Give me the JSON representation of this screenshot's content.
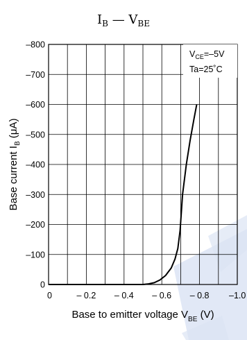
{
  "chart_data": {
    "type": "line",
    "title": {
      "base1": "I",
      "sub1": "B",
      "dash": "—",
      "base2": "V",
      "sub2": "BE"
    },
    "conditions": {
      "vce": {
        "base": "V",
        "sub": "CE",
        "value": "=–5V"
      },
      "ta": "Ta=25˚C"
    },
    "ylabel": {
      "text": "Base current",
      "symbol": "I",
      "sub": "B",
      "unit": "(μA)"
    },
    "xlabel": {
      "text": "Base to emitter voltage",
      "symbol": "V",
      "sub": "BE",
      "unit": "(V)"
    },
    "x_ticks": [
      "0",
      "– 0.2",
      "– 0.4",
      "– 0.6",
      "– 0.8",
      "–1.0"
    ],
    "y_ticks": [
      "0",
      "–100",
      "–200",
      "–300",
      "–400",
      "–500",
      "–600",
      "–700",
      "–800"
    ],
    "xlim": [
      0,
      -1.0
    ],
    "ylim": [
      0,
      -800
    ],
    "grid": true,
    "series": [
      {
        "x": [
          0,
          -0.4,
          -0.5,
          -0.53,
          -0.56,
          -0.59,
          -0.62,
          -0.65,
          -0.67,
          -0.685,
          -0.697,
          -0.71,
          -0.73,
          -0.75,
          -0.77,
          -0.785
        ],
        "y": [
          0,
          0,
          0,
          -2,
          -6,
          -15,
          -30,
          -55,
          -85,
          -120,
          -180,
          -300,
          -400,
          -480,
          -550,
          -600
        ]
      }
    ],
    "colors": {
      "line": "#000000",
      "watermark": "#dce4f4"
    }
  }
}
